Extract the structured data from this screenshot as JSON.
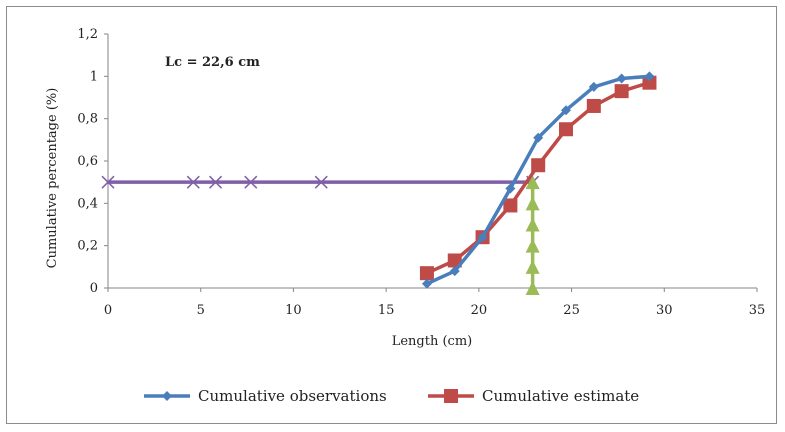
{
  "chart_data": {
    "type": "line",
    "annotation": "Lc = 22,6 cm",
    "xlabel": "Length (cm)",
    "ylabel": "Cumulative percentage (%)",
    "xlim": [
      0,
      35
    ],
    "ylim": [
      0,
      1.2
    ],
    "x_ticks": [
      "0",
      "5",
      "10",
      "15",
      "20",
      "25",
      "30",
      "35"
    ],
    "y_ticks": [
      "0",
      "0,2",
      "0,4",
      "0,6",
      "0,8",
      "1",
      "1,2"
    ],
    "grid": false,
    "legend_position": "bottom",
    "series": [
      {
        "name": "Cumulative observations",
        "color": "#4a7ebb",
        "marker": "diamond",
        "x": [
          17.2,
          18.7,
          20.2,
          21.7,
          23.2,
          24.7,
          26.2,
          27.7,
          29.2
        ],
        "y": [
          0.02,
          0.08,
          0.24,
          0.47,
          0.71,
          0.84,
          0.95,
          0.99,
          1.0
        ]
      },
      {
        "name": "Cumulative estimate",
        "color": "#be4b48",
        "marker": "square",
        "x": [
          17.2,
          18.7,
          20.2,
          21.7,
          23.2,
          24.7,
          26.2,
          27.7,
          29.2
        ],
        "y": [
          0.07,
          0.13,
          0.24,
          0.39,
          0.58,
          0.75,
          0.86,
          0.93,
          0.97
        ]
      },
      {
        "color": "#7f5fa6",
        "marker": "x",
        "in_legend": false,
        "x": [
          0,
          4.6,
          5.8,
          7.7,
          11.5,
          22.9
        ],
        "y": [
          0.5,
          0.5,
          0.5,
          0.5,
          0.5,
          0.5
        ]
      },
      {
        "color": "#9bbb59",
        "marker": "triangle",
        "in_legend": false,
        "x": [
          22.9,
          22.9,
          22.9,
          22.9,
          22.9,
          22.9
        ],
        "y": [
          0.0,
          0.1,
          0.2,
          0.3,
          0.4,
          0.5
        ]
      }
    ]
  }
}
